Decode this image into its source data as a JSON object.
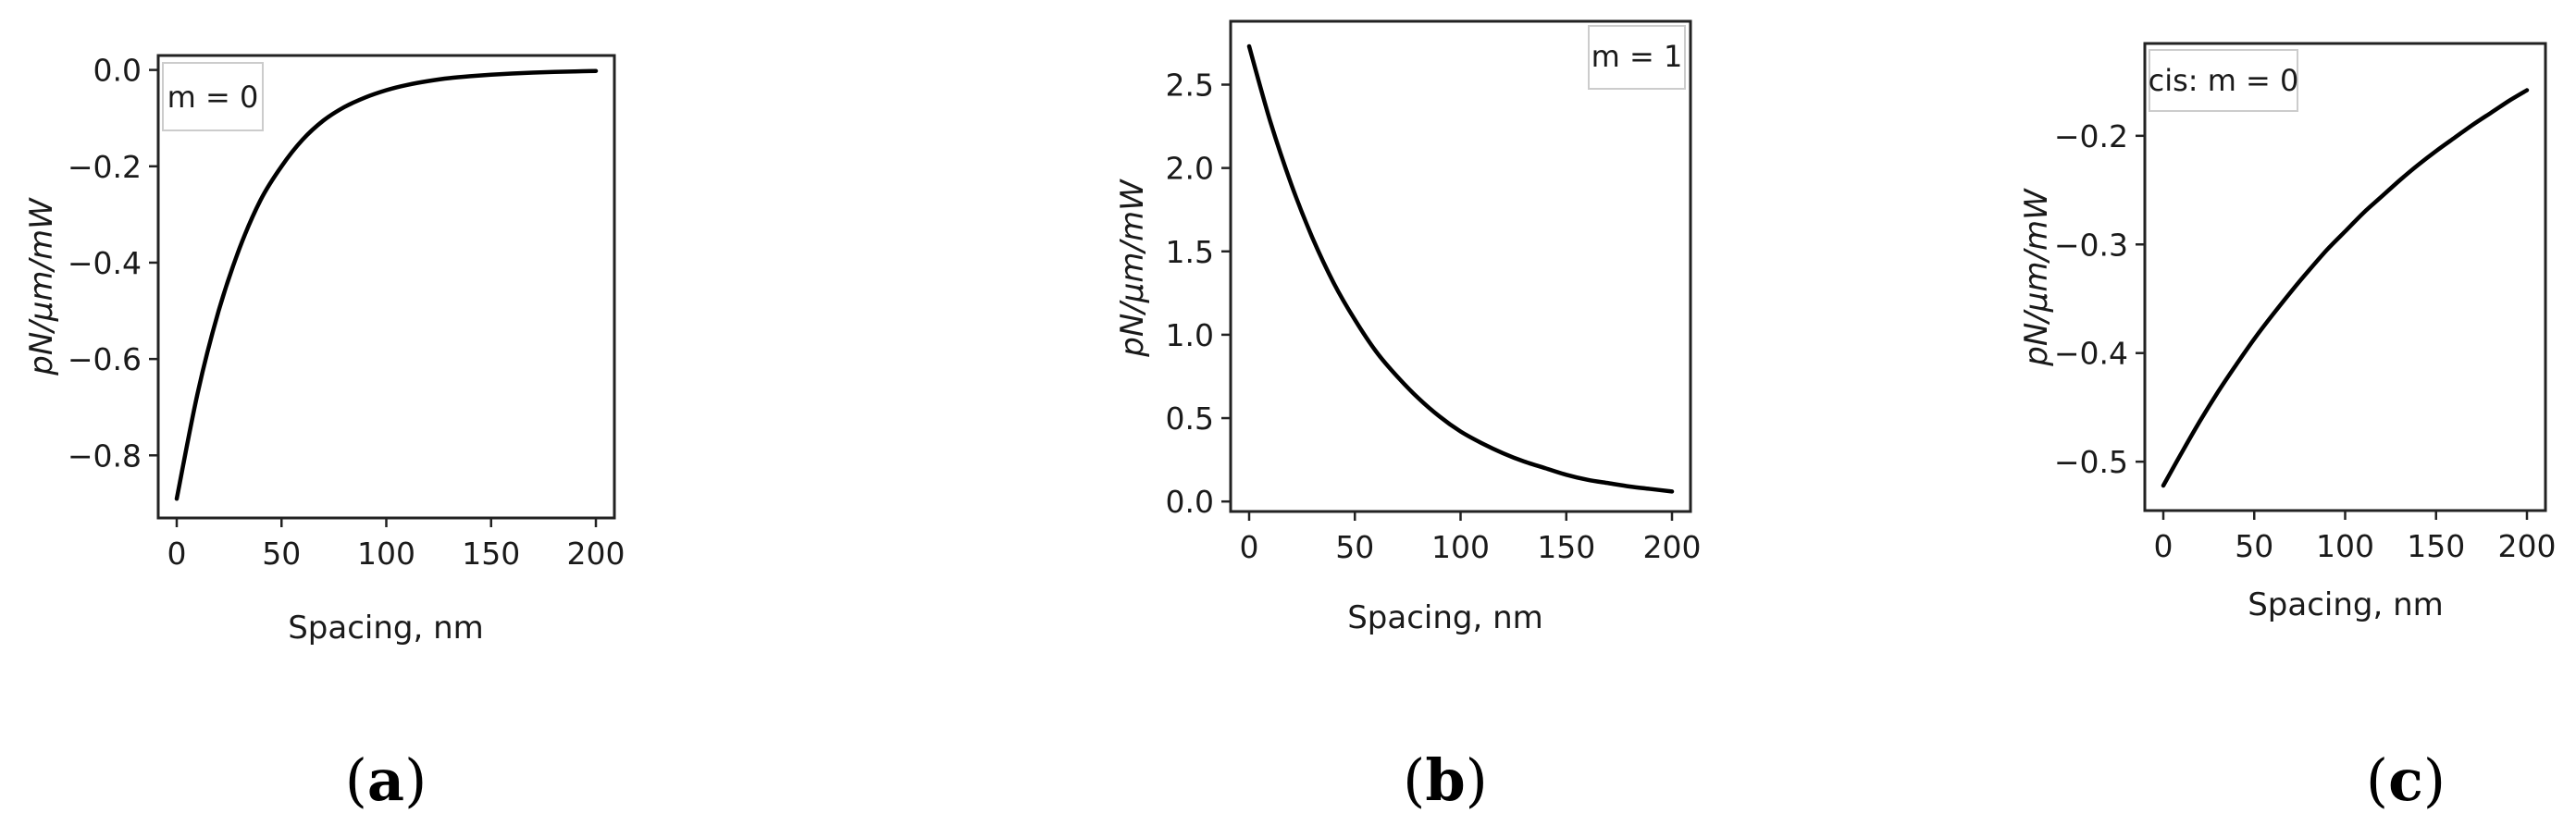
{
  "chart_data": [
    {
      "type": "line",
      "panel_label": "a",
      "legend": "m = 0",
      "legend_position": "top-left",
      "xlabel": "Spacing, nm",
      "ylabel": "pN/μm/mW",
      "xlim": [
        0,
        200
      ],
      "ylim": [
        -0.93,
        0.03
      ],
      "xticks": [
        0,
        50,
        100,
        150,
        200
      ],
      "yticks": [
        0.0,
        -0.2,
        -0.4,
        -0.6,
        -0.8
      ],
      "ytick_labels": [
        "0.0",
        "−0.2",
        "−0.4",
        "−0.6",
        "−0.8"
      ],
      "x": [
        0,
        10,
        20,
        30,
        40,
        50,
        60,
        70,
        80,
        90,
        100,
        110,
        120,
        130,
        140,
        150,
        160,
        170,
        180,
        190,
        200
      ],
      "y": [
        -0.89,
        -0.67,
        -0.5,
        -0.37,
        -0.27,
        -0.2,
        -0.145,
        -0.105,
        -0.077,
        -0.057,
        -0.042,
        -0.031,
        -0.023,
        -0.017,
        -0.013,
        -0.01,
        -0.0075,
        -0.0055,
        -0.004,
        -0.003,
        -0.002
      ],
      "color": "#000000"
    },
    {
      "type": "line",
      "panel_label": "b",
      "legend": "m = 1",
      "legend_position": "top-right",
      "xlabel": "Spacing, nm",
      "ylabel": "pN/μm/mW",
      "xlim": [
        0,
        200
      ],
      "ylim": [
        -0.06,
        2.88
      ],
      "xticks": [
        0,
        50,
        100,
        150,
        200
      ],
      "yticks": [
        0.0,
        0.5,
        1.0,
        1.5,
        2.0,
        2.5
      ],
      "ytick_labels": [
        "0.0",
        "0.5",
        "1.0",
        "1.5",
        "2.0",
        "2.5"
      ],
      "x": [
        0,
        10,
        20,
        30,
        40,
        50,
        60,
        70,
        80,
        90,
        100,
        110,
        120,
        130,
        140,
        150,
        160,
        170,
        180,
        190,
        200
      ],
      "y": [
        2.73,
        2.28,
        1.9,
        1.58,
        1.31,
        1.09,
        0.9,
        0.75,
        0.62,
        0.51,
        0.42,
        0.35,
        0.29,
        0.24,
        0.2,
        0.16,
        0.13,
        0.11,
        0.09,
        0.075,
        0.06
      ],
      "color": "#000000"
    },
    {
      "type": "line",
      "panel_label": "c",
      "legend": "cis: m = 0",
      "legend_position": "top-left",
      "xlabel": "Spacing, nm",
      "ylabel": "pN/μm/mW",
      "xlim": [
        0,
        200
      ],
      "ylim": [
        -0.545,
        -0.115
      ],
      "xticks": [
        0,
        50,
        100,
        150,
        200
      ],
      "yticks": [
        -0.2,
        -0.3,
        -0.4,
        -0.5
      ],
      "ytick_labels": [
        "−0.2",
        "−0.3",
        "−0.4",
        "−0.5"
      ],
      "x": [
        0,
        10,
        20,
        30,
        40,
        50,
        60,
        70,
        80,
        90,
        100,
        110,
        120,
        130,
        140,
        150,
        160,
        170,
        180,
        190,
        200
      ],
      "y": [
        -0.522,
        -0.492,
        -0.463,
        -0.436,
        -0.411,
        -0.387,
        -0.365,
        -0.344,
        -0.324,
        -0.305,
        -0.288,
        -0.271,
        -0.256,
        -0.241,
        -0.227,
        -0.214,
        -0.202,
        -0.19,
        -0.179,
        -0.168,
        -0.158
      ],
      "color": "#000000"
    }
  ]
}
